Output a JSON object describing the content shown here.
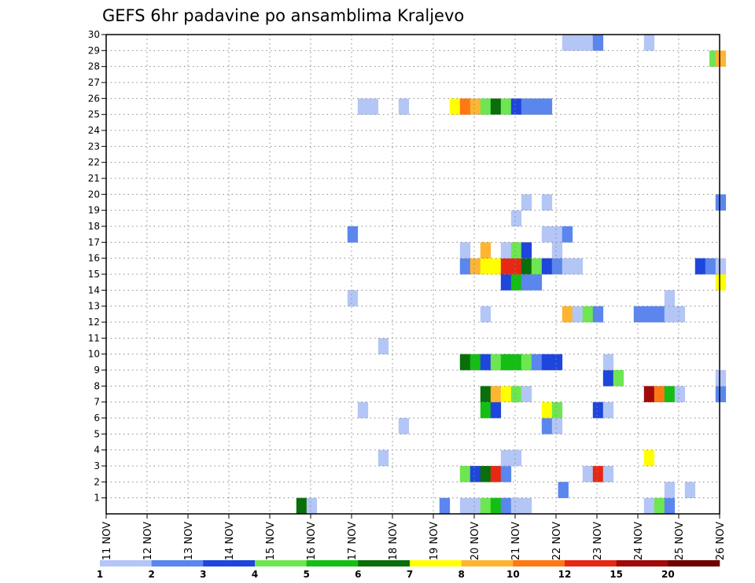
{
  "chart_data": {
    "type": "heatmap",
    "title": "GEFS 6hr padavine po ansamblima Kraljevo",
    "xlabel": "",
    "ylabel": "",
    "x_range": [
      0,
      60
    ],
    "y_range": [
      0,
      30
    ],
    "x_ticks": [
      {
        "pos": 0,
        "label": "11 NOV"
      },
      {
        "pos": 4,
        "label": "12 NOV"
      },
      {
        "pos": 8,
        "label": "13 NOV"
      },
      {
        "pos": 12,
        "label": "14 NOV"
      },
      {
        "pos": 16,
        "label": "15 NOV"
      },
      {
        "pos": 20,
        "label": "16 NOV"
      },
      {
        "pos": 24,
        "label": "17 NOV"
      },
      {
        "pos": 28,
        "label": "18 NOV"
      },
      {
        "pos": 32,
        "label": "19 NOV"
      },
      {
        "pos": 36,
        "label": "20 NOV"
      },
      {
        "pos": 40,
        "label": "21 NOV"
      },
      {
        "pos": 44,
        "label": "22 NOV"
      },
      {
        "pos": 48,
        "label": "23 NOV"
      },
      {
        "pos": 52,
        "label": "24 NOV"
      },
      {
        "pos": 56,
        "label": "25 NOV"
      },
      {
        "pos": 60,
        "label": "26 NOV"
      }
    ],
    "y_ticks": [
      "1",
      "2",
      "3",
      "4",
      "5",
      "6",
      "7",
      "8",
      "9",
      "10",
      "11",
      "12",
      "13",
      "14",
      "15",
      "16",
      "17",
      "18",
      "19",
      "20",
      "21",
      "22",
      "23",
      "24",
      "25",
      "26",
      "27",
      "28",
      "29",
      "30"
    ],
    "grid": true,
    "colorbar": {
      "labels": [
        "1",
        "2",
        "3",
        "4",
        "5",
        "6",
        "7",
        "8",
        "10",
        "12",
        "15",
        "20"
      ],
      "colors": [
        "#b4c6f6",
        "#5a86ee",
        "#1e46dc",
        "#6ee652",
        "#14be14",
        "#0a6e0a",
        "#ffff00",
        "#ffb432",
        "#ff7814",
        "#e62814",
        "#a00a0a",
        "#6e0000"
      ]
    },
    "cells": [
      {
        "x": 18.6,
        "y": 0,
        "c": 5
      },
      {
        "x": 19.6,
        "y": 0,
        "c": 0
      },
      {
        "x": 32.6,
        "y": 0,
        "c": 1
      },
      {
        "x": 34.6,
        "y": 0,
        "c": 0
      },
      {
        "x": 35.6,
        "y": 0,
        "c": 0
      },
      {
        "x": 36.6,
        "y": 0,
        "c": 3
      },
      {
        "x": 37.6,
        "y": 0,
        "c": 4
      },
      {
        "x": 38.6,
        "y": 0,
        "c": 1
      },
      {
        "x": 39.6,
        "y": 0,
        "c": 0
      },
      {
        "x": 40.6,
        "y": 0,
        "c": 0
      },
      {
        "x": 52.6,
        "y": 0,
        "c": 0
      },
      {
        "x": 53.6,
        "y": 0,
        "c": 3
      },
      {
        "x": 54.6,
        "y": 0,
        "c": 1
      },
      {
        "x": 44.2,
        "y": 1,
        "c": 1
      },
      {
        "x": 54.6,
        "y": 1,
        "c": 0
      },
      {
        "x": 56.6,
        "y": 1,
        "c": 0
      },
      {
        "x": 34.6,
        "y": 2,
        "c": 3
      },
      {
        "x": 35.6,
        "y": 2,
        "c": 2
      },
      {
        "x": 36.6,
        "y": 2,
        "c": 5
      },
      {
        "x": 37.6,
        "y": 2,
        "c": 9
      },
      {
        "x": 38.6,
        "y": 2,
        "c": 1
      },
      {
        "x": 46.6,
        "y": 2,
        "c": 0
      },
      {
        "x": 47.6,
        "y": 2,
        "c": 9
      },
      {
        "x": 48.6,
        "y": 2,
        "c": 0
      },
      {
        "x": 26.6,
        "y": 3,
        "c": 0
      },
      {
        "x": 38.6,
        "y": 3,
        "c": 0
      },
      {
        "x": 39.6,
        "y": 3,
        "c": 0
      },
      {
        "x": 52.6,
        "y": 3,
        "c": 6
      },
      {
        "x": 28.6,
        "y": 5,
        "c": 0
      },
      {
        "x": 42.6,
        "y": 5,
        "c": 1
      },
      {
        "x": 43.6,
        "y": 5,
        "c": 0
      },
      {
        "x": 24.6,
        "y": 6,
        "c": 0
      },
      {
        "x": 36.6,
        "y": 6,
        "c": 4
      },
      {
        "x": 37.6,
        "y": 6,
        "c": 2
      },
      {
        "x": 42.6,
        "y": 6,
        "c": 6
      },
      {
        "x": 43.6,
        "y": 6,
        "c": 3
      },
      {
        "x": 47.6,
        "y": 6,
        "c": 2
      },
      {
        "x": 48.6,
        "y": 6,
        "c": 0
      },
      {
        "x": 36.6,
        "y": 7,
        "c": 5
      },
      {
        "x": 37.6,
        "y": 7,
        "c": 7
      },
      {
        "x": 38.6,
        "y": 7,
        "c": 6
      },
      {
        "x": 39.6,
        "y": 7,
        "c": 3
      },
      {
        "x": 40.6,
        "y": 7,
        "c": 0
      },
      {
        "x": 52.6,
        "y": 7,
        "c": 10
      },
      {
        "x": 53.6,
        "y": 7,
        "c": 8
      },
      {
        "x": 54.6,
        "y": 7,
        "c": 4
      },
      {
        "x": 55.6,
        "y": 7,
        "c": 0
      },
      {
        "x": 59.6,
        "y": 7,
        "c": 1
      },
      {
        "x": 48.6,
        "y": 8,
        "c": 2
      },
      {
        "x": 49.6,
        "y": 8,
        "c": 3
      },
      {
        "x": 59.6,
        "y": 8,
        "c": 0
      },
      {
        "x": 34.6,
        "y": 9,
        "c": 5
      },
      {
        "x": 35.6,
        "y": 9,
        "c": 4
      },
      {
        "x": 36.6,
        "y": 9,
        "c": 2
      },
      {
        "x": 37.6,
        "y": 9,
        "c": 3
      },
      {
        "x": 38.6,
        "y": 9,
        "c": 4
      },
      {
        "x": 39.6,
        "y": 9,
        "c": 4
      },
      {
        "x": 40.6,
        "y": 9,
        "c": 3
      },
      {
        "x": 41.6,
        "y": 9,
        "c": 1
      },
      {
        "x": 42.6,
        "y": 9,
        "c": 2
      },
      {
        "x": 43.6,
        "y": 9,
        "c": 2
      },
      {
        "x": 48.6,
        "y": 9,
        "c": 0
      },
      {
        "x": 26.6,
        "y": 10,
        "c": 0
      },
      {
        "x": 36.6,
        "y": 12,
        "c": 0
      },
      {
        "x": 44.6,
        "y": 12,
        "c": 7
      },
      {
        "x": 45.6,
        "y": 12,
        "c": 0
      },
      {
        "x": 46.6,
        "y": 12,
        "c": 3
      },
      {
        "x": 47.6,
        "y": 12,
        "c": 1
      },
      {
        "x": 51.6,
        "y": 12,
        "c": 1
      },
      {
        "x": 52.6,
        "y": 12,
        "c": 1
      },
      {
        "x": 53.6,
        "y": 12,
        "c": 1
      },
      {
        "x": 54.6,
        "y": 12,
        "c": 0
      },
      {
        "x": 55.6,
        "y": 12,
        "c": 0
      },
      {
        "x": 23.6,
        "y": 13,
        "c": 0
      },
      {
        "x": 54.6,
        "y": 13,
        "c": 0
      },
      {
        "x": 38.6,
        "y": 14,
        "c": 2
      },
      {
        "x": 39.6,
        "y": 14,
        "c": 4
      },
      {
        "x": 40.6,
        "y": 14,
        "c": 1
      },
      {
        "x": 41.6,
        "y": 14,
        "c": 1
      },
      {
        "x": 59.6,
        "y": 14,
        "c": 6
      },
      {
        "x": 34.6,
        "y": 15,
        "c": 1
      },
      {
        "x": 35.6,
        "y": 15,
        "c": 7
      },
      {
        "x": 36.6,
        "y": 15,
        "c": 6
      },
      {
        "x": 37.6,
        "y": 15,
        "c": 6
      },
      {
        "x": 38.6,
        "y": 15,
        "c": 9
      },
      {
        "x": 39.6,
        "y": 15,
        "c": 9
      },
      {
        "x": 40.6,
        "y": 15,
        "c": 5
      },
      {
        "x": 41.6,
        "y": 15,
        "c": 3
      },
      {
        "x": 42.6,
        "y": 15,
        "c": 2
      },
      {
        "x": 43.6,
        "y": 15,
        "c": 1
      },
      {
        "x": 44.6,
        "y": 15,
        "c": 0
      },
      {
        "x": 45.6,
        "y": 15,
        "c": 0
      },
      {
        "x": 57.6,
        "y": 15,
        "c": 2
      },
      {
        "x": 58.6,
        "y": 15,
        "c": 1
      },
      {
        "x": 59.6,
        "y": 15,
        "c": 0
      },
      {
        "x": 34.6,
        "y": 16,
        "c": 0
      },
      {
        "x": 36.6,
        "y": 16,
        "c": 7
      },
      {
        "x": 38.6,
        "y": 16,
        "c": 0
      },
      {
        "x": 39.6,
        "y": 16,
        "c": 3
      },
      {
        "x": 40.6,
        "y": 16,
        "c": 2
      },
      {
        "x": 43.6,
        "y": 16,
        "c": 0
      },
      {
        "x": 23.6,
        "y": 17,
        "c": 1
      },
      {
        "x": 42.6,
        "y": 17,
        "c": 0
      },
      {
        "x": 43.6,
        "y": 17,
        "c": 0
      },
      {
        "x": 44.6,
        "y": 17,
        "c": 1
      },
      {
        "x": 39.6,
        "y": 18,
        "c": 0
      },
      {
        "x": 40.6,
        "y": 19,
        "c": 0
      },
      {
        "x": 42.6,
        "y": 19,
        "c": 0
      },
      {
        "x": 59.6,
        "y": 19,
        "c": 1
      },
      {
        "x": 24.6,
        "y": 25,
        "c": 0
      },
      {
        "x": 25.6,
        "y": 25,
        "c": 0
      },
      {
        "x": 28.6,
        "y": 25,
        "c": 0
      },
      {
        "x": 33.6,
        "y": 25,
        "c": 6
      },
      {
        "x": 34.6,
        "y": 25,
        "c": 8
      },
      {
        "x": 35.6,
        "y": 25,
        "c": 7
      },
      {
        "x": 36.6,
        "y": 25,
        "c": 3
      },
      {
        "x": 37.6,
        "y": 25,
        "c": 5
      },
      {
        "x": 38.6,
        "y": 25,
        "c": 3
      },
      {
        "x": 39.6,
        "y": 25,
        "c": 2
      },
      {
        "x": 40.6,
        "y": 25,
        "c": 1
      },
      {
        "x": 41.6,
        "y": 25,
        "c": 1
      },
      {
        "x": 42.6,
        "y": 25,
        "c": 1
      },
      {
        "x": 59.0,
        "y": 28,
        "c": 3
      },
      {
        "x": 59.6,
        "y": 28,
        "c": 7
      },
      {
        "x": 44.6,
        "y": 29,
        "c": 0
      },
      {
        "x": 45.6,
        "y": 29,
        "c": 0
      },
      {
        "x": 46.6,
        "y": 29,
        "c": 0
      },
      {
        "x": 47.6,
        "y": 29,
        "c": 1
      },
      {
        "x": 52.6,
        "y": 29,
        "c": 0
      }
    ]
  }
}
